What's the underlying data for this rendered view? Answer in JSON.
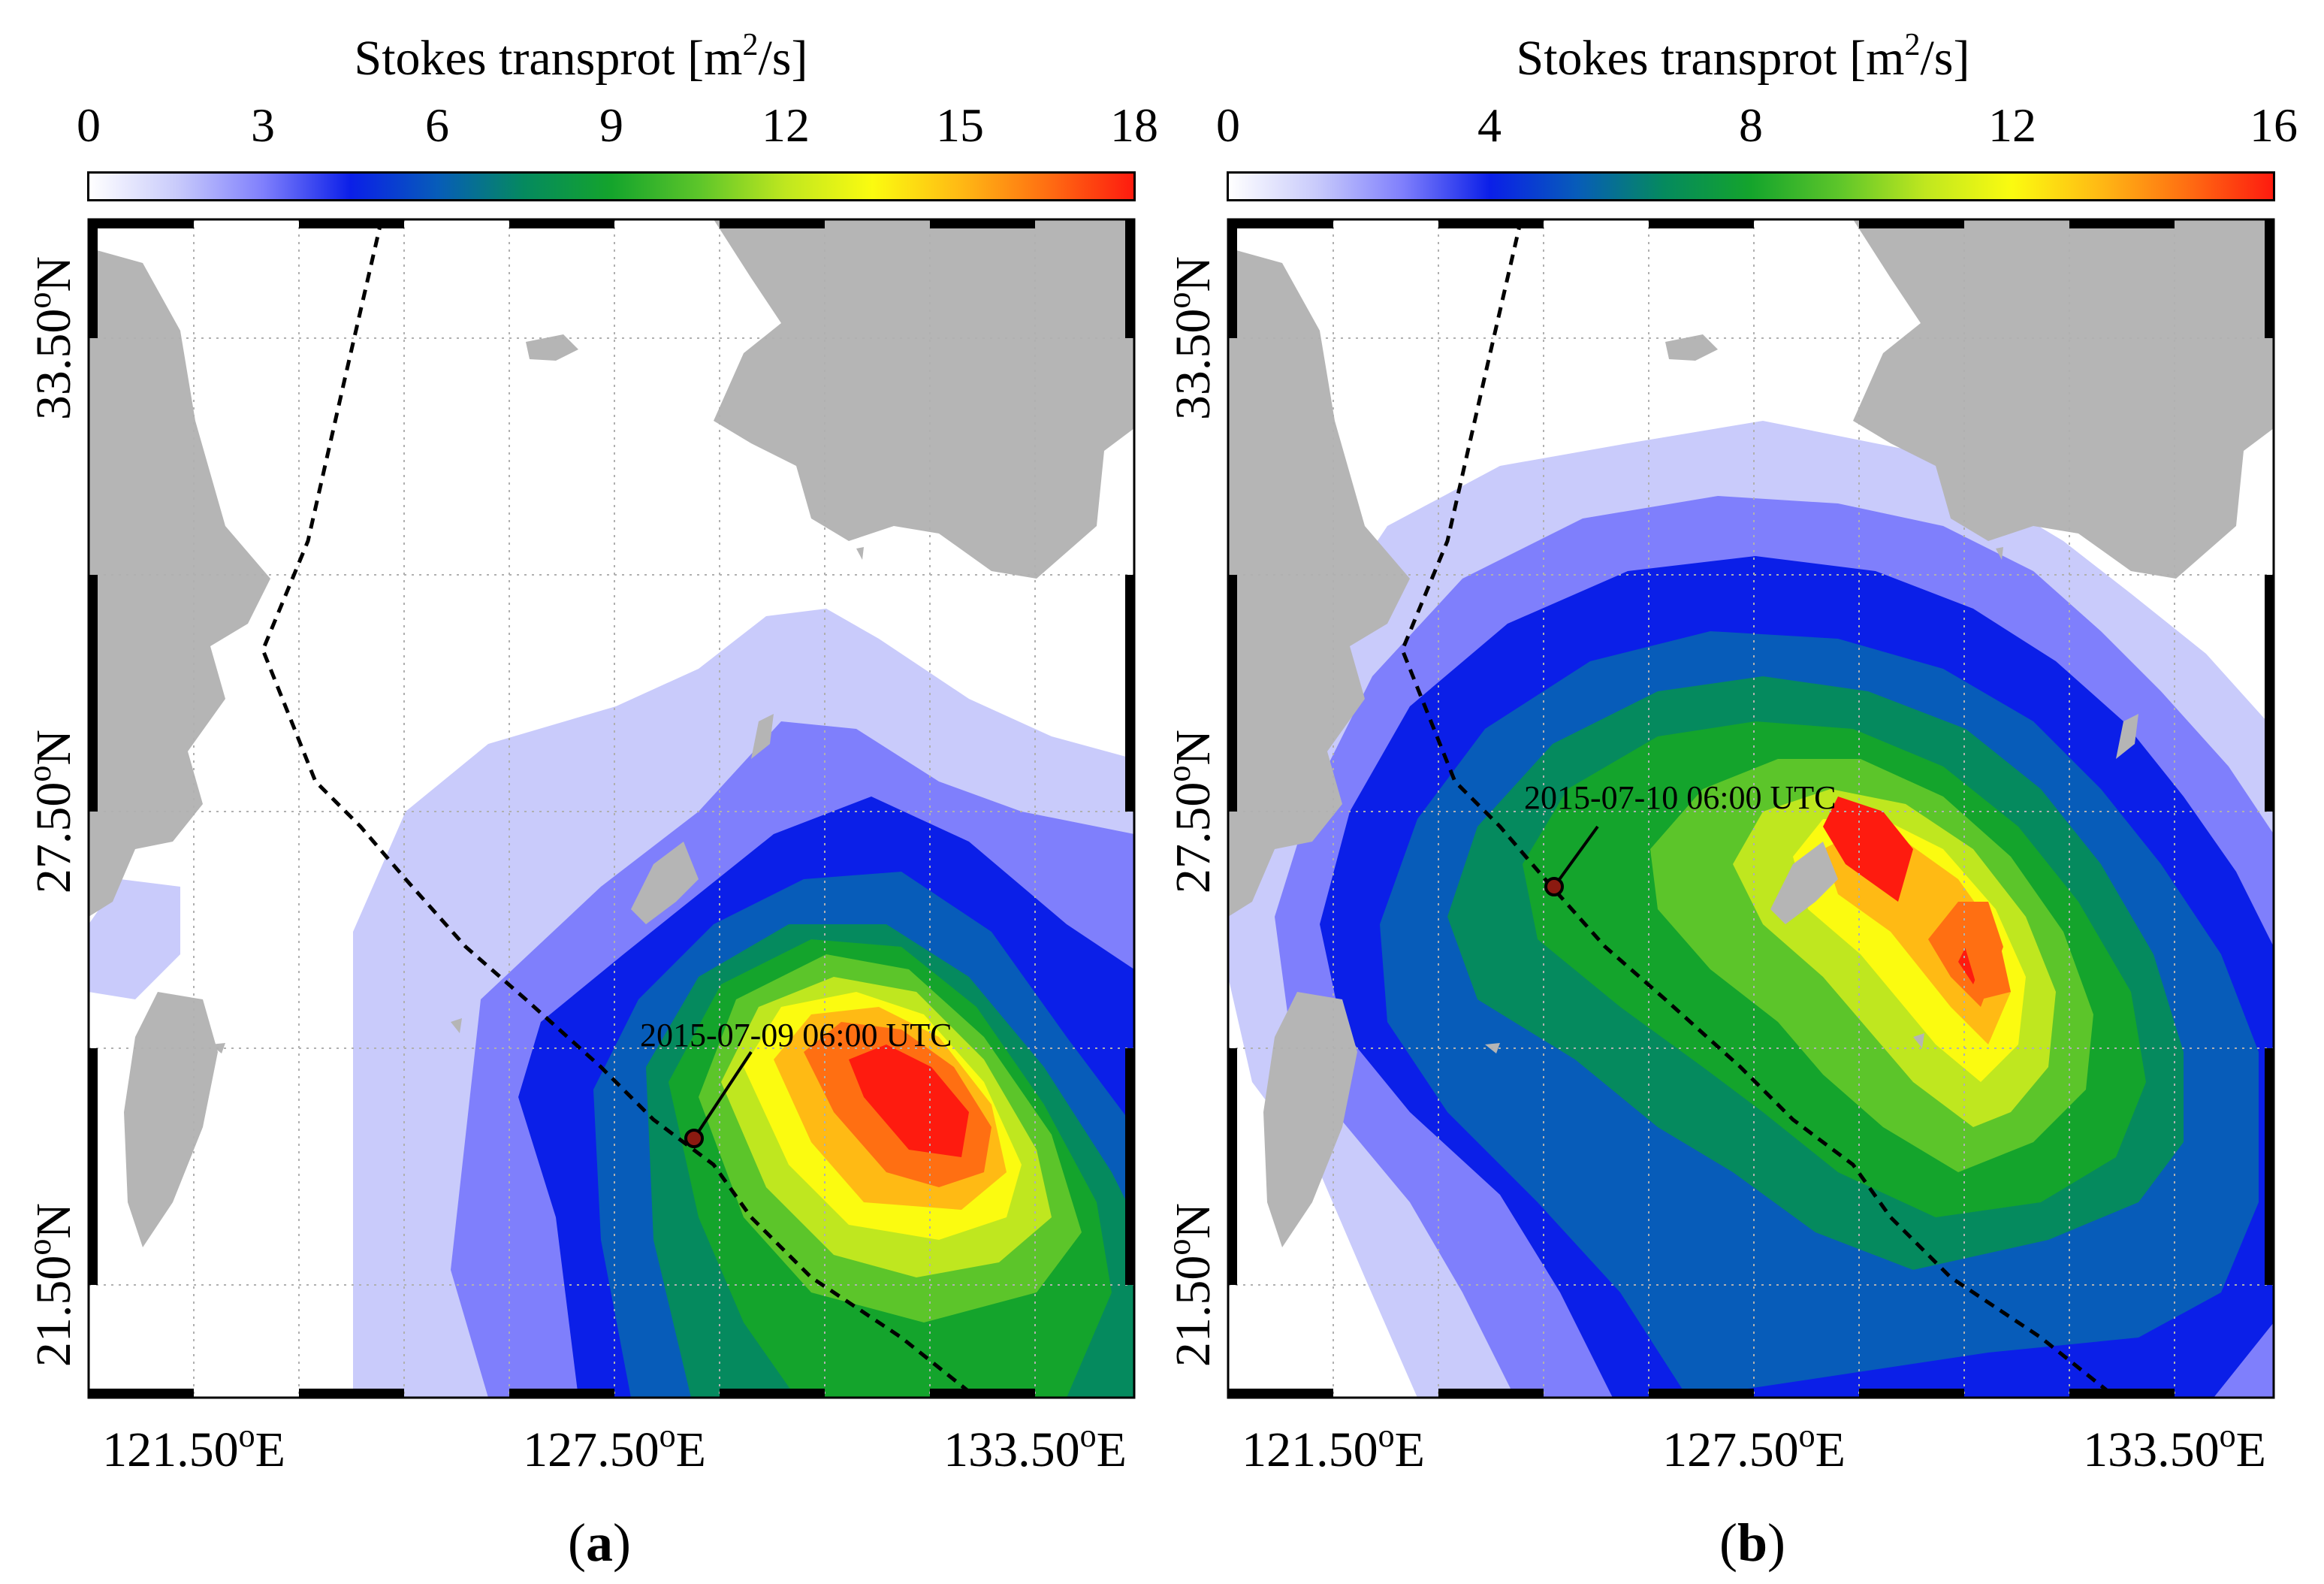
{
  "colorscale": [
    "#ffffff",
    "#c9cbfb",
    "#7f7ffc",
    "#0b1fe8",
    "#075cb9",
    "#058a5e",
    "#14a42c",
    "#5cc52a",
    "#bfe71f",
    "#fbfb10",
    "#ffba14",
    "#ff6f12",
    "#fe1b0f"
  ],
  "map_colors": {
    "land": "#b5b5b5",
    "track": "#000000",
    "grid": "#b0b0b0"
  },
  "panels": [
    {
      "label_open": "(",
      "label_letter": "a",
      "label_close": ")",
      "colorbar_title": "Stokes transprot [m",
      "colorbar_sup": "2",
      "colorbar_suffix": "/s]",
      "colorbar_ticks": [
        "0",
        "3",
        "6",
        "9",
        "12",
        "15",
        "18"
      ],
      "colorbar_range": [
        0,
        18
      ],
      "lon_labels": [
        "121.50",
        "127.50",
        "133.50"
      ],
      "lon_suffix": "E",
      "lat_labels": [
        "33.50",
        "27.50",
        "21.50"
      ],
      "lat_suffix": "N",
      "degree": "o",
      "annotation": "2015-07-09 06:00 UTC"
    },
    {
      "label_open": "(",
      "label_letter": "b",
      "label_close": ")",
      "colorbar_title": "Stokes transprot [m",
      "colorbar_sup": "2",
      "colorbar_suffix": "/s]",
      "colorbar_ticks": [
        "0",
        "4",
        "8",
        "12",
        "16"
      ],
      "colorbar_range": [
        0,
        16
      ],
      "lon_labels": [
        "121.50",
        "127.50",
        "133.50"
      ],
      "lon_suffix": "E",
      "lat_labels": [
        "33.50",
        "27.50",
        "21.50"
      ],
      "lat_suffix": "N",
      "degree": "o",
      "annotation": "2015-07-10 06:00 UTC"
    }
  ]
}
